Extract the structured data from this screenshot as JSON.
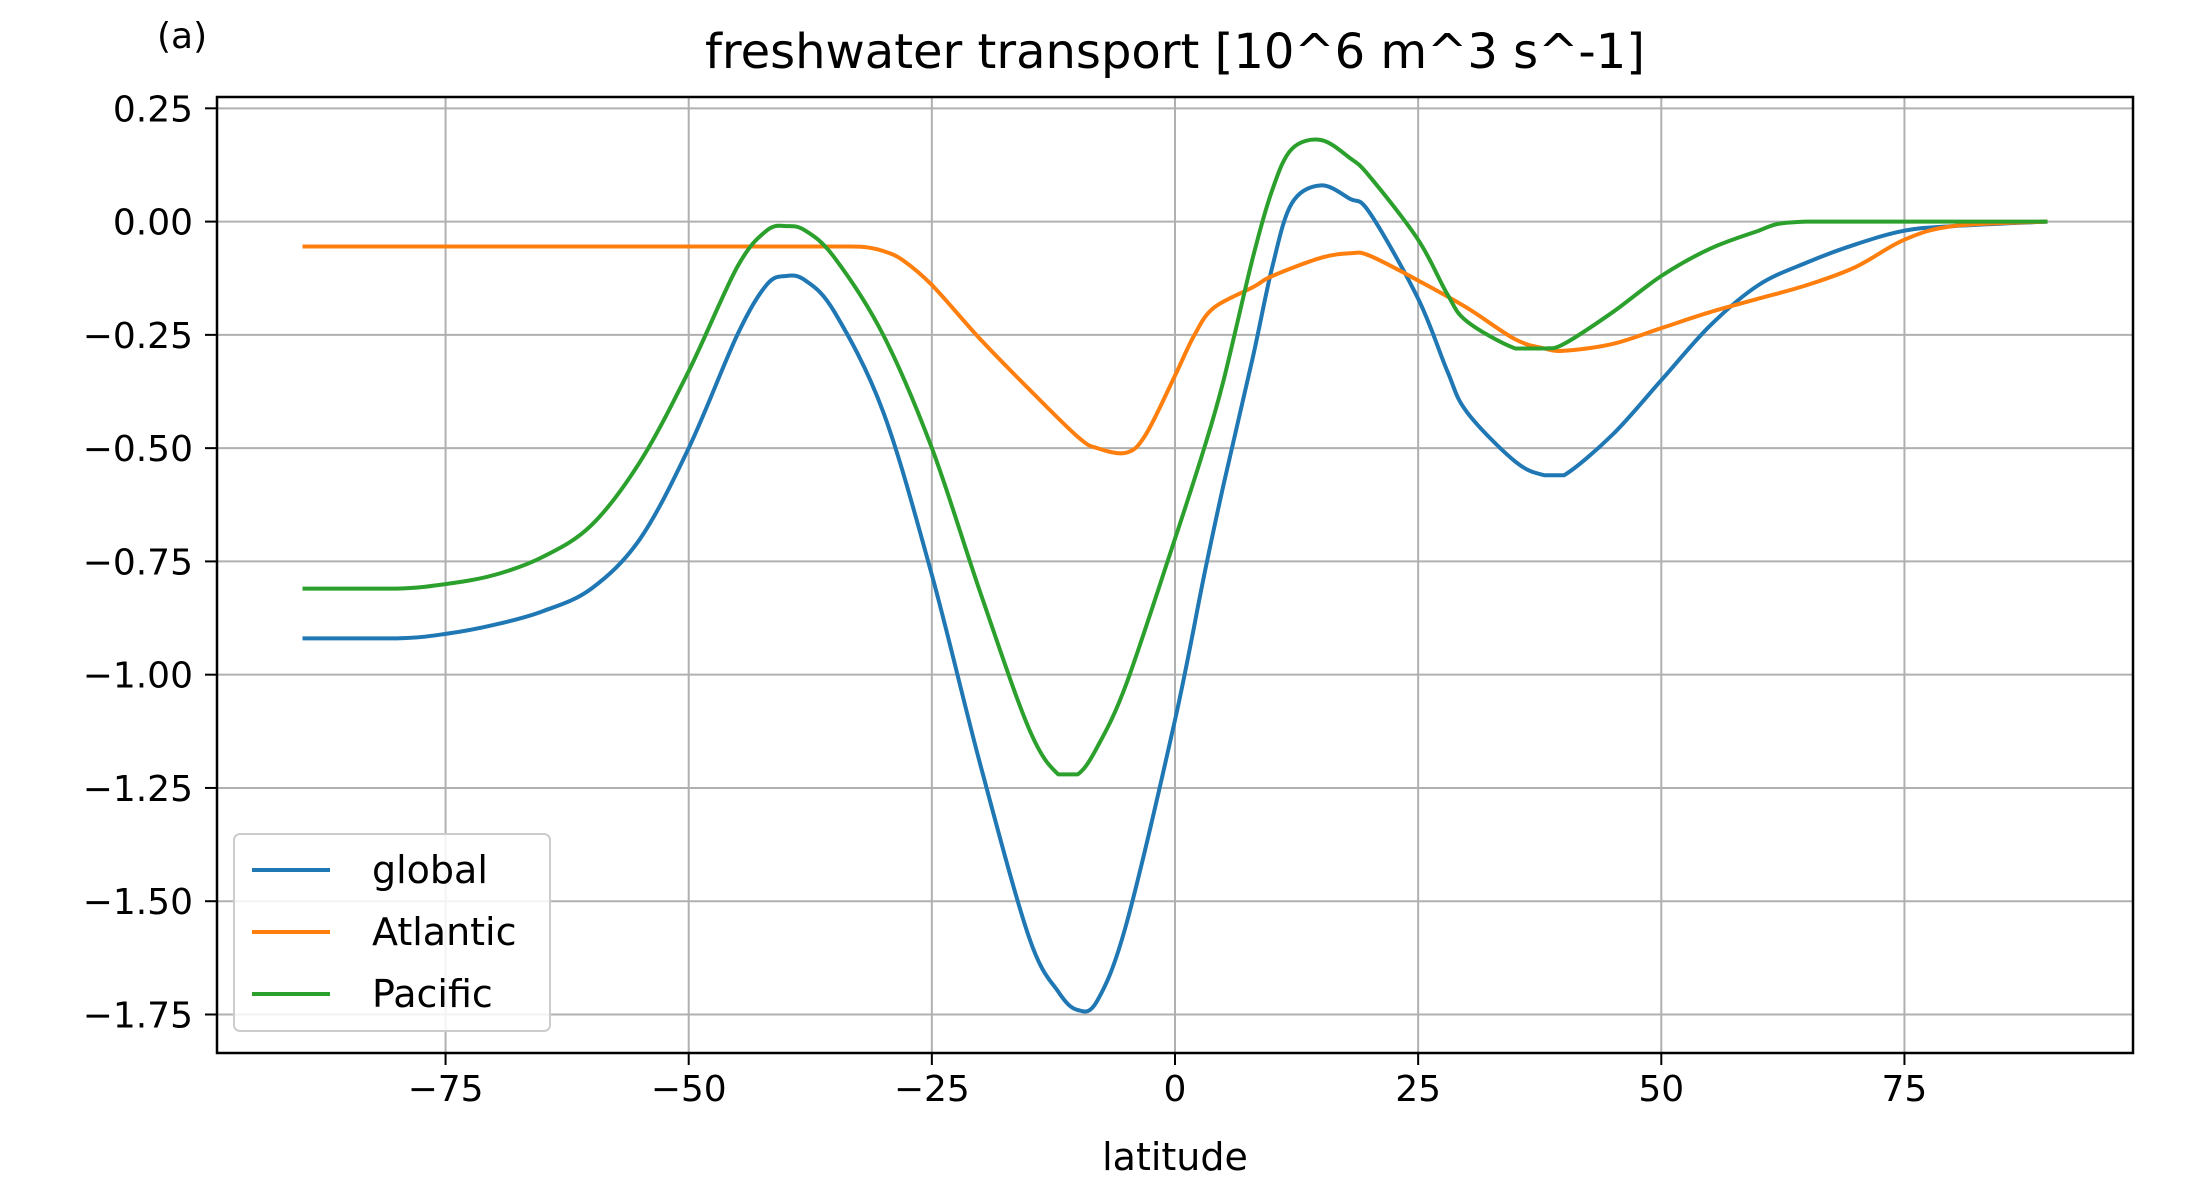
{
  "panel_label": "(a)",
  "chart_data": {
    "type": "line",
    "title": "freshwater transport [10^6 m^3 s^-1]",
    "xlabel": "latitude",
    "ylabel": "",
    "xlim": [
      -98.5,
      98.5
    ],
    "ylim": [
      -1.835,
      0.275
    ],
    "xticks": [
      -75,
      -50,
      -25,
      0,
      25,
      50,
      75
    ],
    "xtick_labels": [
      "−75",
      "−50",
      "−25",
      "0",
      "25",
      "50",
      "75"
    ],
    "yticks": [
      0.25,
      0.0,
      -0.25,
      -0.5,
      -0.75,
      -1.0,
      -1.25,
      -1.5,
      -1.75
    ],
    "ytick_labels": [
      "0.25",
      "0.00",
      "−0.25",
      "−0.50",
      "−0.75",
      "−1.00",
      "−1.25",
      "−1.50",
      "−1.75"
    ],
    "grid": true,
    "legend_position": "lower-left",
    "series": [
      {
        "name": "global",
        "color": "#1f77b4",
        "x": [
          -89.5,
          -80,
          -75,
          -70,
          -65,
          -60,
          -55,
          -50,
          -45,
          -42,
          -40,
          -38,
          -35,
          -30,
          -25,
          -20,
          -15,
          -12,
          -10,
          -8,
          -5,
          0,
          3,
          5,
          8,
          10,
          12,
          15,
          18,
          20,
          25,
          28,
          30,
          35,
          38,
          40,
          45,
          50,
          55,
          60,
          65,
          70,
          75,
          80,
          89.5
        ],
        "y": [
          -0.92,
          -0.92,
          -0.91,
          -0.89,
          -0.86,
          -0.81,
          -0.7,
          -0.5,
          -0.25,
          -0.14,
          -0.12,
          -0.13,
          -0.2,
          -0.42,
          -0.78,
          -1.2,
          -1.58,
          -1.7,
          -1.74,
          -1.72,
          -1.55,
          -1.1,
          -0.78,
          -0.58,
          -0.3,
          -0.1,
          0.04,
          0.08,
          0.05,
          0.02,
          -0.17,
          -0.33,
          -0.42,
          -0.53,
          -0.56,
          -0.56,
          -0.47,
          -0.35,
          -0.23,
          -0.14,
          -0.09,
          -0.05,
          -0.02,
          -0.01,
          0.0
        ]
      },
      {
        "name": "Atlantic",
        "color": "#ff7f0e",
        "x": [
          -89.5,
          -75,
          -50,
          -40,
          -35,
          -32,
          -30,
          -28,
          -25,
          -20,
          -15,
          -10,
          -8,
          -5,
          -3,
          0,
          2,
          4,
          8,
          10,
          15,
          18,
          20,
          25,
          30,
          35,
          38,
          40,
          45,
          50,
          55,
          60,
          65,
          70,
          75,
          80,
          89.5
        ],
        "y": [
          -0.055,
          -0.055,
          -0.055,
          -0.055,
          -0.055,
          -0.056,
          -0.065,
          -0.085,
          -0.14,
          -0.26,
          -0.37,
          -0.475,
          -0.5,
          -0.51,
          -0.47,
          -0.34,
          -0.25,
          -0.19,
          -0.145,
          -0.12,
          -0.08,
          -0.07,
          -0.075,
          -0.13,
          -0.19,
          -0.26,
          -0.28,
          -0.285,
          -0.27,
          -0.235,
          -0.2,
          -0.17,
          -0.14,
          -0.1,
          -0.04,
          -0.01,
          0.0
        ]
      },
      {
        "name": "Pacific",
        "color": "#2ca02c",
        "x": [
          -89.5,
          -80,
          -75,
          -70,
          -65,
          -60,
          -55,
          -50,
          -45,
          -42,
          -40,
          -38,
          -35,
          -30,
          -25,
          -20,
          -15,
          -12,
          -10,
          -8,
          -5,
          0,
          3,
          5,
          8,
          10,
          12,
          15,
          18,
          20,
          25,
          28,
          30,
          35,
          38,
          40,
          45,
          50,
          55,
          60,
          62,
          65,
          70,
          75,
          80,
          89.5
        ],
        "y": [
          -0.81,
          -0.81,
          -0.8,
          -0.78,
          -0.74,
          -0.67,
          -0.53,
          -0.33,
          -0.1,
          -0.02,
          -0.01,
          -0.02,
          -0.08,
          -0.25,
          -0.5,
          -0.82,
          -1.12,
          -1.22,
          -1.22,
          -1.16,
          -1.02,
          -0.7,
          -0.5,
          -0.35,
          -0.08,
          0.07,
          0.16,
          0.18,
          0.14,
          0.1,
          -0.04,
          -0.16,
          -0.22,
          -0.28,
          -0.28,
          -0.27,
          -0.2,
          -0.12,
          -0.06,
          -0.02,
          -0.005,
          0.0,
          0.0,
          0.0,
          0.0,
          0.0
        ]
      }
    ]
  }
}
